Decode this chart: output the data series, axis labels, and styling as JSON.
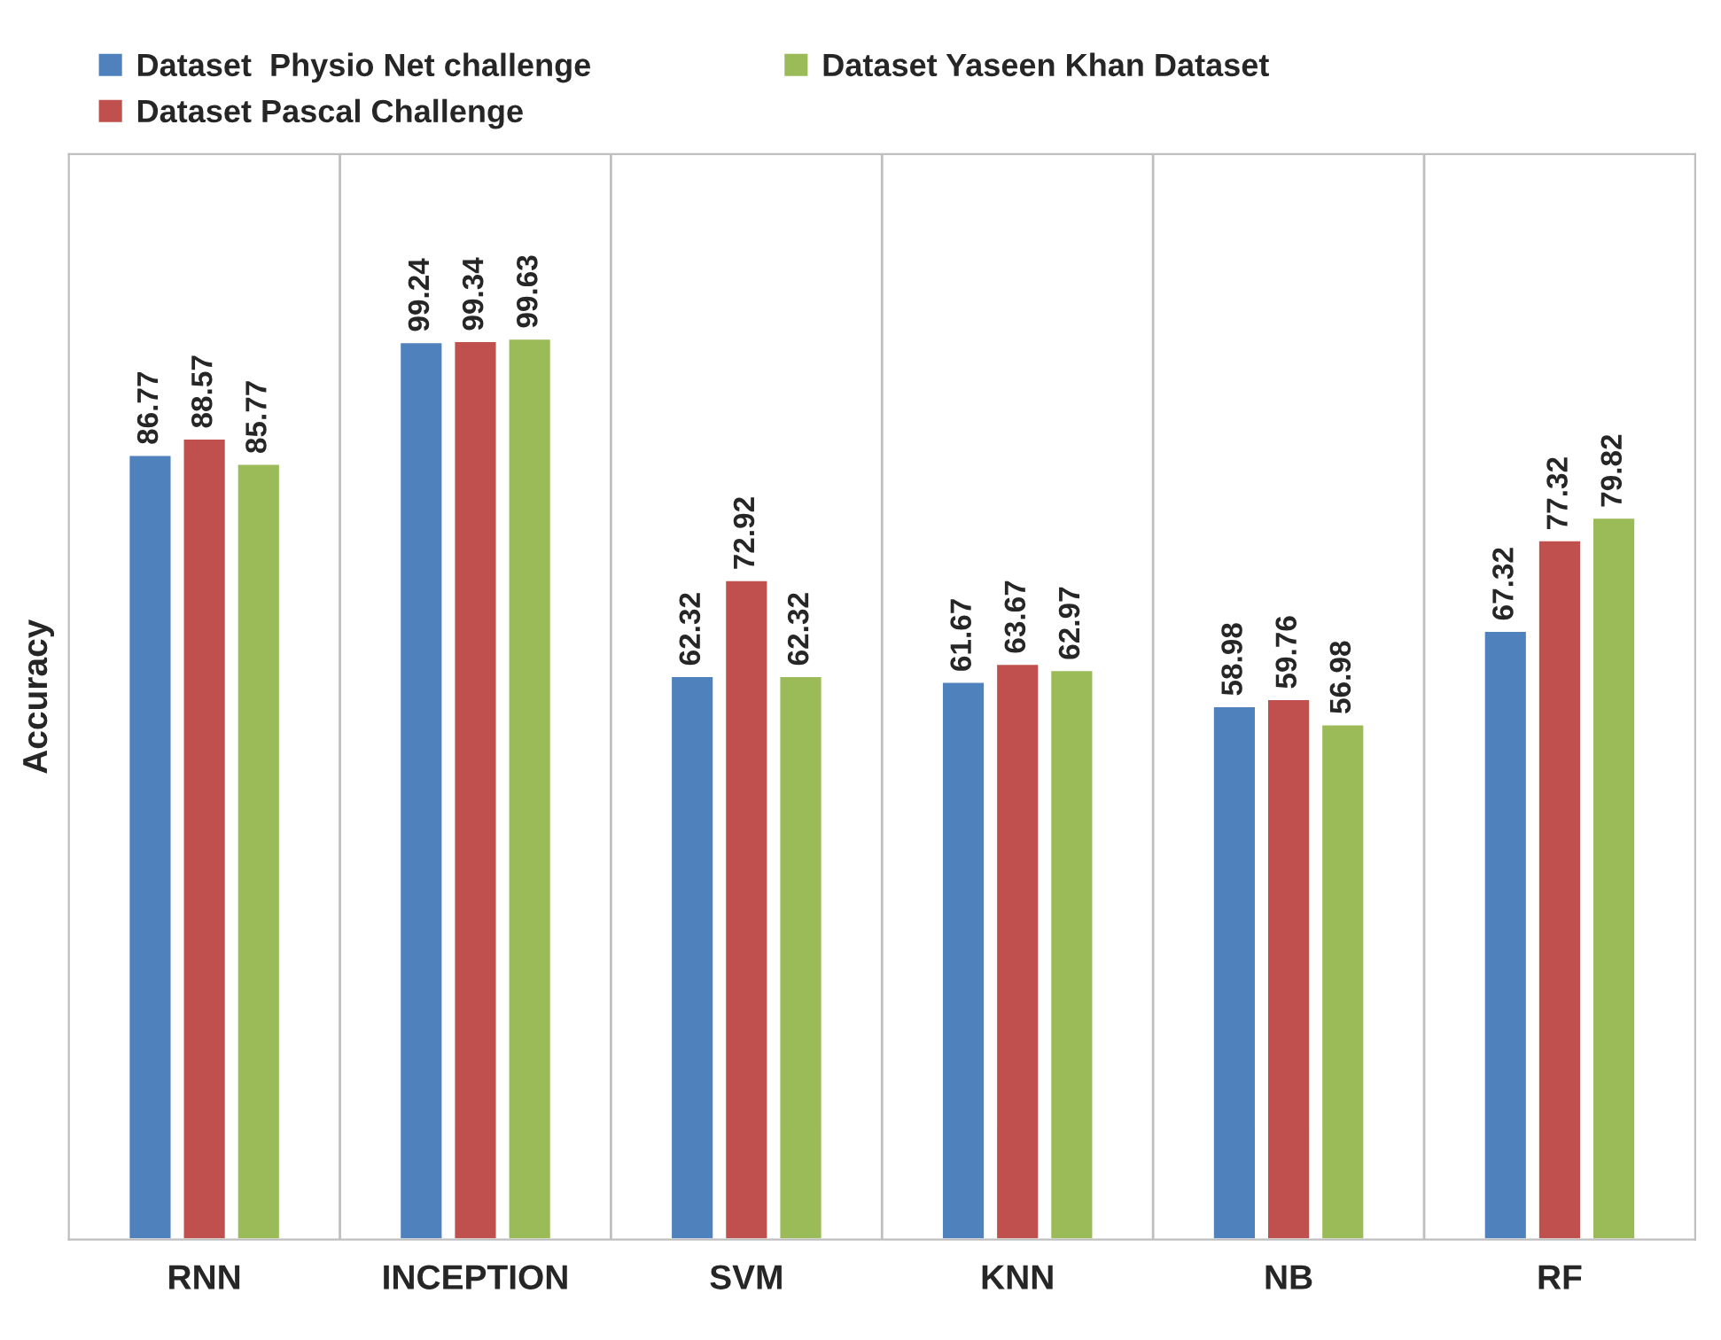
{
  "chart_data": {
    "type": "bar",
    "ylabel": "Accuracy",
    "categories": [
      "RNN",
      "INCEPTION",
      "SVM",
      "KNN",
      "NB",
      "RF"
    ],
    "series": [
      {
        "name": "Dataset  Physio Net challenge",
        "color": "#4f81bd",
        "values": [
          86.77,
          99.24,
          62.32,
          61.67,
          58.98,
          67.32
        ]
      },
      {
        "name": "Dataset Pascal Challenge",
        "color": "#c0504d",
        "values": [
          88.57,
          99.34,
          72.92,
          63.67,
          59.76,
          77.32
        ]
      },
      {
        "name": "Dataset Yaseen Khan Dataset",
        "color": "#9bbb59",
        "values": [
          85.77,
          99.63,
          62.32,
          62.97,
          56.98,
          79.82
        ]
      }
    ],
    "ylim": [
      0,
      120
    ],
    "data_labels": true,
    "grid": "x",
    "legend": "top",
    "tick_labels": "x"
  }
}
